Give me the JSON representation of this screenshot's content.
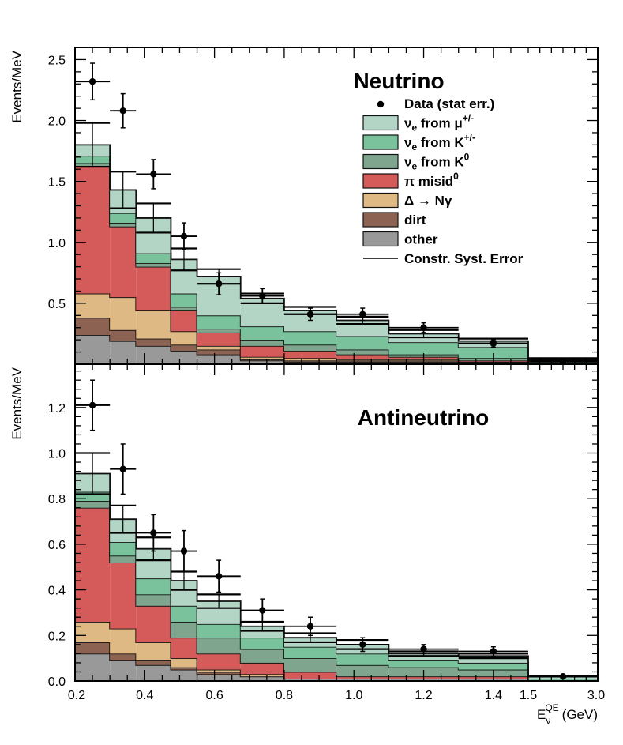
{
  "chart_data": [
    {
      "type": "bar",
      "stacked": true,
      "title": "Neutrino",
      "ylabel": "Events/MeV",
      "xlabel": "",
      "ylim": [
        0,
        2.6
      ],
      "y_ticks": [
        0.5,
        1.0,
        1.5,
        2.0,
        2.5
      ],
      "y_tick_labels": [
        "0.5",
        "1.0",
        "1.5",
        "2.0",
        "2.5"
      ],
      "bin_edges": [
        0.2,
        0.3,
        0.375,
        0.475,
        0.55,
        0.675,
        0.8,
        0.95,
        1.1,
        1.3,
        1.5,
        3.0
      ],
      "series": [
        {
          "name": "other",
          "color": "#999999",
          "values": [
            0.24,
            0.19,
            0.15,
            0.11,
            0.08,
            0.03,
            0.02,
            0.02,
            0.02,
            0.02,
            0.01
          ]
        },
        {
          "name": "dirt",
          "color": "#8c6352",
          "values": [
            0.14,
            0.09,
            0.06,
            0.05,
            0.04,
            0.01,
            0.01,
            0.01,
            0.01,
            0.0,
            0.0
          ]
        },
        {
          "name": "Δ → Nγ",
          "color": "#dfb983",
          "values": [
            0.2,
            0.27,
            0.23,
            0.11,
            0.03,
            0.02,
            0.02,
            0.01,
            0.01,
            0.0,
            0.0
          ]
        },
        {
          "name": "π0 misid",
          "color": "#d55a5a",
          "values": [
            1.04,
            0.58,
            0.36,
            0.17,
            0.11,
            0.09,
            0.06,
            0.04,
            0.02,
            0.01,
            0.0
          ]
        },
        {
          "name": "νe from K0",
          "color": "#7fa58f",
          "values": [
            0.03,
            0.03,
            0.03,
            0.03,
            0.03,
            0.05,
            0.05,
            0.04,
            0.02,
            0.02,
            0.0
          ]
        },
        {
          "name": "νe from K+/-",
          "color": "#79c29c",
          "values": [
            0.06,
            0.08,
            0.08,
            0.11,
            0.11,
            0.11,
            0.11,
            0.11,
            0.1,
            0.09,
            0.0
          ]
        },
        {
          "name": "νe from μ+/-",
          "color": "#b3d5c6",
          "values": [
            0.09,
            0.19,
            0.29,
            0.28,
            0.32,
            0.23,
            0.17,
            0.13,
            0.07,
            0.05,
            0.03
          ]
        }
      ],
      "syst_error": [
        0.18,
        0.15,
        0.12,
        0.09,
        0.06,
        0.04,
        0.03,
        0.03,
        0.03,
        0.02,
        0.01
      ],
      "data_points": {
        "name": "Data (stat err.)",
        "x": [
          0.25,
          0.3375,
          0.425,
          0.5125,
          0.6125,
          0.7375,
          0.875,
          1.025,
          1.2,
          1.4,
          2.25
        ],
        "y": [
          2.32,
          2.08,
          1.56,
          1.05,
          0.66,
          0.56,
          0.41,
          0.41,
          0.3,
          0.17,
          0.02
        ],
        "yerr": [
          0.15,
          0.14,
          0.12,
          0.11,
          0.09,
          0.06,
          0.05,
          0.05,
          0.04,
          0.03,
          0.01
        ]
      }
    },
    {
      "type": "bar",
      "stacked": true,
      "title": "Antineutrino",
      "ylabel": "Events/MeV",
      "xlabel": "E_ν^QE (GeV)",
      "ylim": [
        0,
        1.39
      ],
      "y_ticks": [
        0.0,
        0.2,
        0.4,
        0.6,
        0.8,
        1.0,
        1.2
      ],
      "y_tick_labels": [
        "0.0",
        "0.2",
        "0.4",
        "0.6",
        "0.8",
        "1.0",
        "1.2"
      ],
      "bin_edges": [
        0.2,
        0.3,
        0.375,
        0.475,
        0.55,
        0.675,
        0.8,
        0.95,
        1.1,
        1.3,
        1.5,
        3.0
      ],
      "series": [
        {
          "name": "other",
          "color": "#999999",
          "values": [
            0.12,
            0.09,
            0.07,
            0.05,
            0.03,
            0.02,
            0.01,
            0.01,
            0.01,
            0.01,
            0.0
          ]
        },
        {
          "name": "dirt",
          "color": "#8c6352",
          "values": [
            0.05,
            0.03,
            0.02,
            0.01,
            0.01,
            0.0,
            0.0,
            0.0,
            0.0,
            0.0,
            0.0
          ]
        },
        {
          "name": "Δ → Nγ",
          "color": "#dfb983",
          "values": [
            0.09,
            0.11,
            0.08,
            0.04,
            0.01,
            0.01,
            0.0,
            0.0,
            0.0,
            0.0,
            0.0
          ]
        },
        {
          "name": "π0 misid",
          "color": "#d55a5a",
          "values": [
            0.5,
            0.29,
            0.16,
            0.09,
            0.07,
            0.05,
            0.03,
            0.01,
            0.01,
            0.01,
            0.0
          ]
        },
        {
          "name": "νe from K0",
          "color": "#7fa58f",
          "values": [
            0.03,
            0.03,
            0.05,
            0.07,
            0.07,
            0.06,
            0.06,
            0.05,
            0.04,
            0.03,
            0.0
          ]
        },
        {
          "name": "νe from K+/-",
          "color": "#79c29c",
          "values": [
            0.04,
            0.06,
            0.07,
            0.07,
            0.06,
            0.05,
            0.05,
            0.05,
            0.03,
            0.03,
            0.01
          ]
        },
        {
          "name": "νe from μ+/-",
          "color": "#b3d5c6",
          "values": [
            0.08,
            0.1,
            0.13,
            0.11,
            0.1,
            0.05,
            0.04,
            0.04,
            0.03,
            0.03,
            0.01
          ]
        }
      ],
      "syst_error": [
        0.09,
        0.06,
        0.05,
        0.04,
        0.03,
        0.02,
        0.02,
        0.02,
        0.01,
        0.01,
        0.0
      ],
      "data_points": {
        "name": "Data (stat err.)",
        "x": [
          0.25,
          0.3375,
          0.425,
          0.5125,
          0.6125,
          0.7375,
          0.875,
          1.025,
          1.2,
          1.4,
          2.25
        ],
        "y": [
          1.21,
          0.93,
          0.65,
          0.57,
          0.46,
          0.31,
          0.24,
          0.16,
          0.14,
          0.13,
          0.02
        ],
        "yerr": [
          0.11,
          0.11,
          0.08,
          0.09,
          0.07,
          0.05,
          0.04,
          0.03,
          0.02,
          0.02,
          0.01
        ]
      }
    }
  ],
  "x_axis": {
    "tick_values": [
      0.2,
      0.4,
      0.6,
      0.8,
      1.0,
      1.2,
      1.4,
      1.5,
      3.0
    ],
    "tick_labels": [
      "0.2",
      "0.4",
      "0.6",
      "0.8",
      "1.0",
      "1.2",
      "1.4",
      "1.5",
      "3.0"
    ],
    "title_main": "E",
    "title_sub": "ν",
    "title_sup": "QE",
    "title_unit": "(GeV)"
  },
  "legend": {
    "data_label": "Data (stat err.)",
    "syst_label": "Constr. Syst. Error",
    "entries": [
      {
        "sym": "ν",
        "sub": "e",
        "rest": " from μ",
        "sup": "+/-",
        "color": "#b3d5c6"
      },
      {
        "sym": "ν",
        "sub": "e",
        "rest": " from K",
        "sup": "+/-",
        "color": "#79c29c"
      },
      {
        "sym": "ν",
        "sub": "e",
        "rest": " from K",
        "sup": "0",
        "color": "#7fa58f"
      },
      {
        "sym": "π",
        "sub": "",
        "rest": " misid",
        "sup": "0",
        "color": "#d55a5a"
      },
      {
        "sym": "Δ → Nγ",
        "sub": "",
        "rest": "",
        "sup": "",
        "color": "#dfb983"
      },
      {
        "sym": "dirt",
        "sub": "",
        "rest": "",
        "sup": "",
        "color": "#8c6352"
      },
      {
        "sym": "other",
        "sub": "",
        "rest": "",
        "sup": "",
        "color": "#999999"
      }
    ]
  }
}
